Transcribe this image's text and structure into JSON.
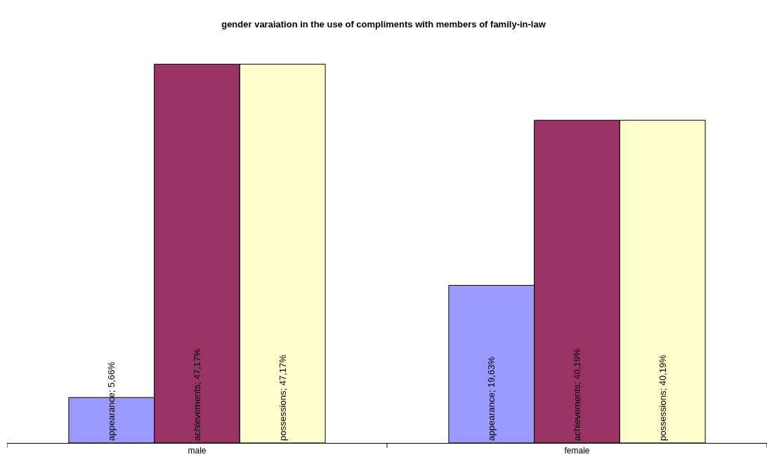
{
  "chart_data": {
    "type": "bar",
    "title": "gender varaiation in the use of compliments with members of family-in-law",
    "categories": [
      "male",
      "female"
    ],
    "tick_labels": "x",
    "legend": false,
    "series": [
      {
        "color": "#9999ff",
        "values": [
          5.66,
          19.63
        ],
        "value_labels": [
          "appearance; 5,66%",
          "appearance; 19,63%"
        ]
      },
      {
        "color": "#993366",
        "values": [
          47.17,
          40.19
        ],
        "value_labels": [
          "achievements; 47,17%",
          "achievements; 40,19%"
        ]
      },
      {
        "color": "#ffffcc",
        "values": [
          47.17,
          40.19
        ],
        "value_labels": [
          "possessions; 47,17%",
          "possessions; 40,19%"
        ]
      }
    ]
  }
}
